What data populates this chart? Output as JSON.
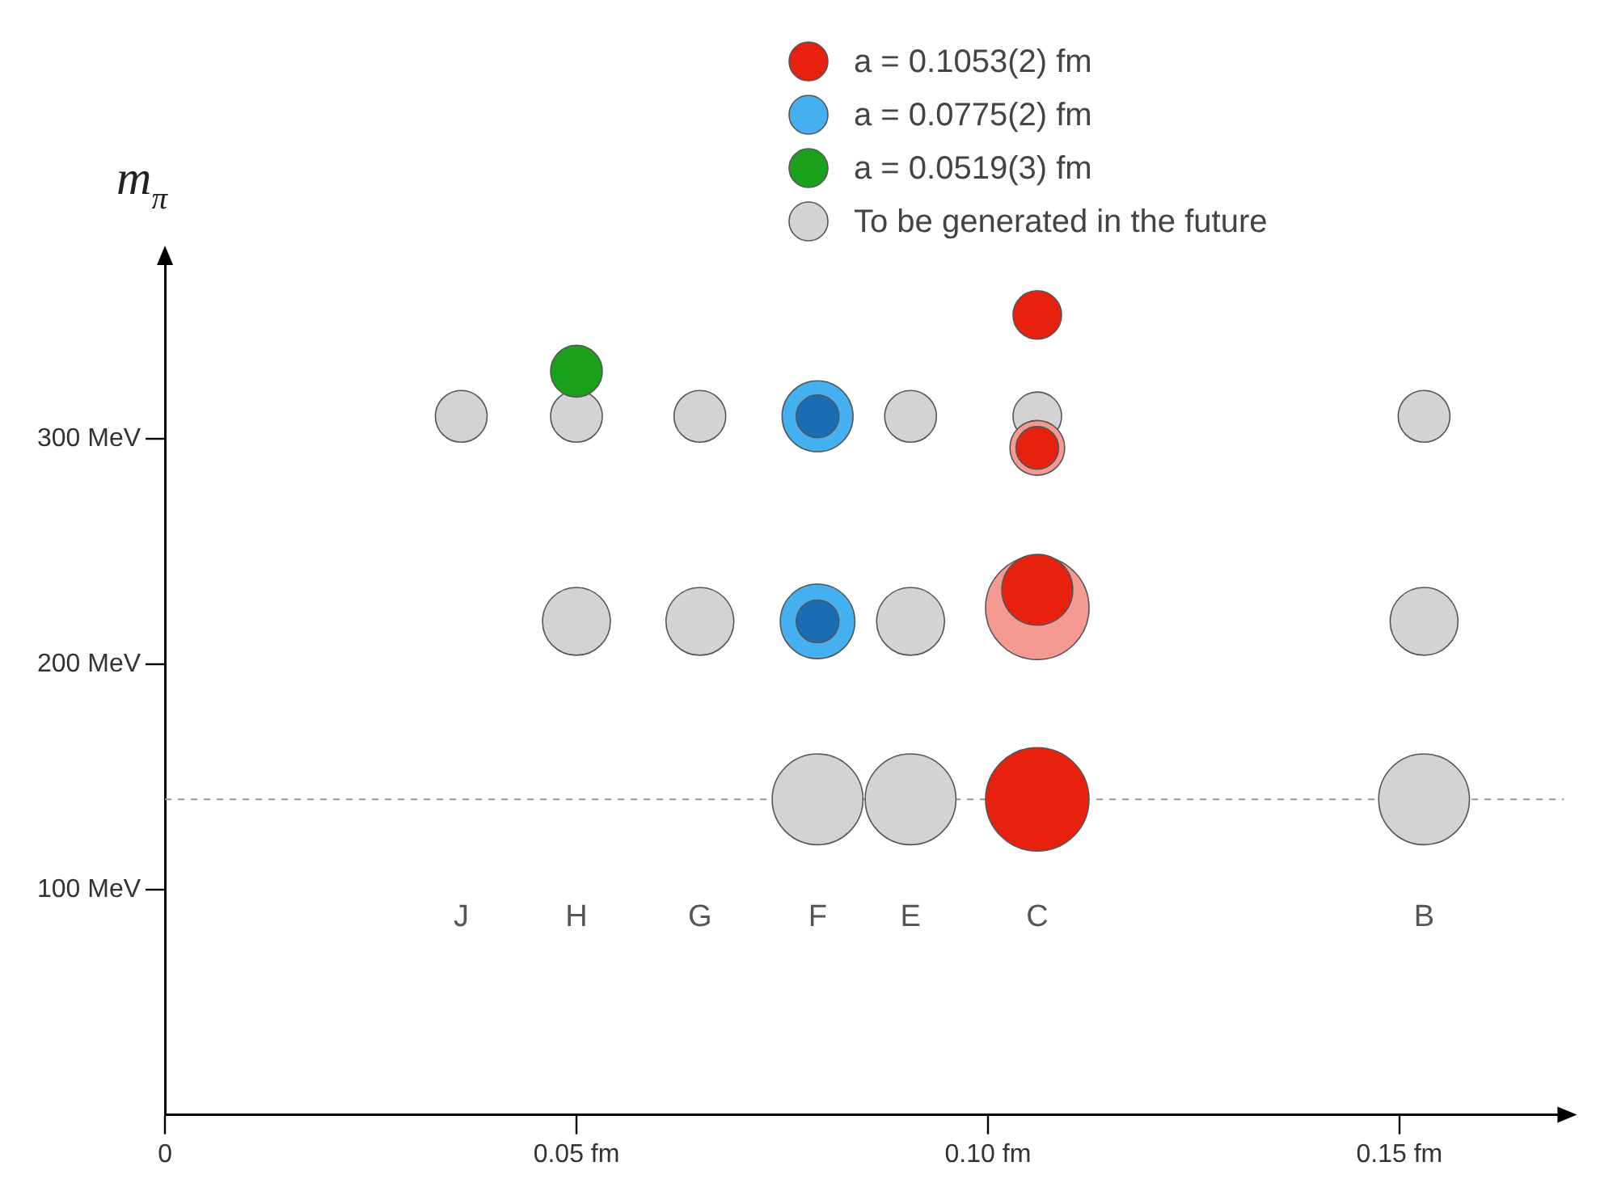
{
  "chart_data": {
    "type": "bubble",
    "ylabel": "m$_{π}$",
    "xlim": [
      0,
      0.17
    ],
    "xticks": [
      {
        "value": 0,
        "label": "0"
      },
      {
        "value": 0.05,
        "label": "0.05 fm"
      },
      {
        "value": 0.1,
        "label": "0.10 fm"
      },
      {
        "value": 0.15,
        "label": "0.15 fm"
      }
    ],
    "ylim": [
      0,
      380
    ],
    "yticks": [
      {
        "value": 100,
        "label": "100 MeV"
      },
      {
        "value": 200,
        "label": "200 MeV"
      },
      {
        "value": 300,
        "label": "300 MeV"
      }
    ],
    "grid": false,
    "legend": "top right",
    "marker": "circle",
    "ref_lines": [
      {
        "axis": "y",
        "value": 140,
        "color": "#999999",
        "line_style": "dashed"
      }
    ],
    "annotations": [
      "J",
      "H",
      "G",
      "F",
      "E",
      "C",
      "B"
    ],
    "series": [
      {
        "name": "a = 0.1053(2) fm",
        "color": "#e8210e",
        "x": [
          0.106,
          0.106,
          0.106,
          0.106
        ],
        "values": [
          355,
          296,
          233,
          140
        ],
        "sizes": [
          0.22,
          0.17,
          0.47,
          1
        ]
      },
      {
        "color": "#1a6db5",
        "x": [
          0.0793,
          0.0793
        ],
        "values": [
          310,
          219
        ],
        "sizes": [
          0.17,
          0.17
        ]
      },
      {
        "name": "a = 0.0775(2) fm",
        "color": "#45b0f0",
        "x": [
          0.0793,
          0.0793
        ],
        "values": [
          310,
          219
        ],
        "sizes": [
          0.47,
          0.52
        ]
      },
      {
        "name": "a = 0.0519(3) fm",
        "color": "#1aa01a",
        "x": [
          0.05
        ],
        "values": [
          330
        ],
        "sizes": [
          0.25
        ]
      },
      {
        "color": "#f59a92",
        "x": [
          0.106,
          0.106
        ],
        "values": [
          296,
          225
        ],
        "sizes": [
          0.28,
          1
        ]
      },
      {
        "name": "To be generated in the future",
        "color": "#d3d3d3",
        "x": [
          0.036,
          0.05,
          0.065,
          0.0906,
          0.106,
          0.153,
          0.05,
          0.065,
          0.0906,
          0.153,
          0.0793,
          0.0906,
          0.153
        ],
        "values": [
          310,
          310,
          310,
          310,
          310,
          310,
          219,
          219,
          219,
          219,
          140,
          140,
          140
        ],
        "sizes": [
          0.25,
          0.25,
          0.25,
          0.25,
          0.22,
          0.25,
          0.43,
          0.43,
          0.43,
          0.43,
          0.77,
          0.77,
          0.77
        ]
      }
    ]
  }
}
